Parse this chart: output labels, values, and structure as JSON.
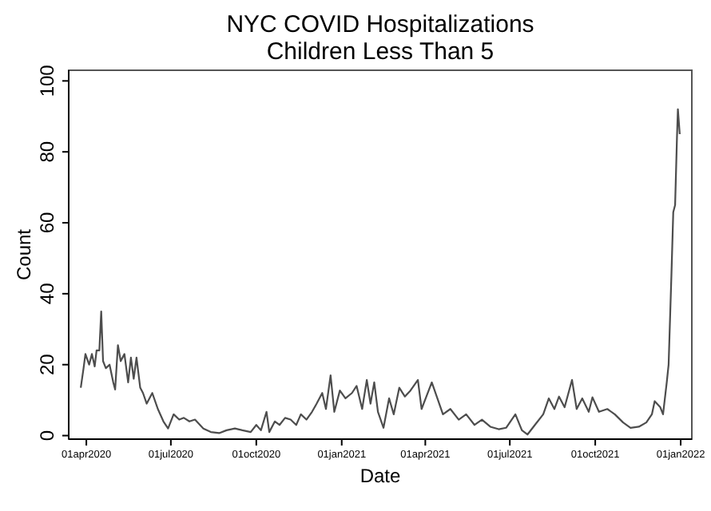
{
  "chart_data": {
    "type": "line",
    "title": "NYC COVID Hospitalizations",
    "subtitle": "Children Less Than 5",
    "xlabel": "Date",
    "ylabel": "Count",
    "xlim": [
      "2020-03-13",
      "2022-01-13"
    ],
    "ylim": [
      -1,
      103
    ],
    "xticks": [
      {
        "value": "2020-04-01",
        "label": "01apr2020"
      },
      {
        "value": "2020-07-01",
        "label": "01jul2020"
      },
      {
        "value": "2020-10-01",
        "label": "01oct2020"
      },
      {
        "value": "2021-01-01",
        "label": "01jan2021"
      },
      {
        "value": "2021-04-01",
        "label": "01apr2021"
      },
      {
        "value": "2021-07-01",
        "label": "01jul2021"
      },
      {
        "value": "2021-10-01",
        "label": "01oct2021"
      },
      {
        "value": "2022-01-01",
        "label": "01jan2022"
      }
    ],
    "yticks": [
      0,
      20,
      40,
      60,
      80,
      100
    ],
    "grid": false,
    "marker": "none",
    "line_style": "solid",
    "series": [
      {
        "color": "#4d4d4d",
        "x": [
          "2020-03-26",
          "2020-03-29",
          "2020-03-31",
          "2020-04-04",
          "2020-04-07",
          "2020-04-10",
          "2020-04-12",
          "2020-04-15",
          "2020-04-17",
          "2020-04-19",
          "2020-04-22",
          "2020-04-26",
          "2020-04-30",
          "2020-05-02",
          "2020-05-05",
          "2020-05-08",
          "2020-05-12",
          "2020-05-16",
          "2020-05-19",
          "2020-05-22",
          "2020-05-25",
          "2020-05-29",
          "2020-06-01",
          "2020-06-05",
          "2020-06-11",
          "2020-06-17",
          "2020-06-23",
          "2020-06-28",
          "2020-07-04",
          "2020-07-10",
          "2020-07-15",
          "2020-07-21",
          "2020-07-27",
          "2020-08-05",
          "2020-08-13",
          "2020-08-22",
          "2020-08-30",
          "2020-09-08",
          "2020-09-16",
          "2020-09-25",
          "2020-10-01",
          "2020-10-06",
          "2020-10-12",
          "2020-10-15",
          "2020-10-21",
          "2020-10-26",
          "2020-11-01",
          "2020-11-07",
          "2020-11-13",
          "2020-11-18",
          "2020-11-24",
          "2020-11-30",
          "2020-12-05",
          "2020-12-11",
          "2020-12-15",
          "2020-12-20",
          "2020-12-24",
          "2020-12-30",
          "2021-01-05",
          "2021-01-12",
          "2021-01-17",
          "2021-01-23",
          "2021-01-28",
          "2021-02-01",
          "2021-02-05",
          "2021-02-09",
          "2021-02-15",
          "2021-02-21",
          "2021-02-26",
          "2021-03-04",
          "2021-03-10",
          "2021-03-16",
          "2021-03-24",
          "2021-03-28",
          "2021-04-08",
          "2021-04-14",
          "2021-04-20",
          "2021-04-28",
          "2021-05-07",
          "2021-05-15",
          "2021-05-24",
          "2021-06-01",
          "2021-06-10",
          "2021-06-19",
          "2021-06-27",
          "2021-07-07",
          "2021-07-14",
          "2021-07-20",
          "2021-07-28",
          "2021-08-06",
          "2021-08-12",
          "2021-08-18",
          "2021-08-23",
          "2021-08-29",
          "2021-09-06",
          "2021-09-11",
          "2021-09-17",
          "2021-09-24",
          "2021-09-28",
          "2021-10-05",
          "2021-10-14",
          "2021-10-22",
          "2021-10-31",
          "2021-11-08",
          "2021-11-17",
          "2021-11-25",
          "2021-12-01",
          "2021-12-04",
          "2021-12-10",
          "2021-12-13",
          "2021-12-17",
          "2021-12-19",
          "2021-12-22",
          "2021-12-24",
          "2021-12-26",
          "2021-12-28",
          "2021-12-29",
          "2021-12-31"
        ],
        "values": [
          13.5,
          19,
          23,
          20,
          23,
          19.5,
          24,
          24,
          35,
          21,
          19,
          20,
          15,
          13,
          25.5,
          21,
          23,
          15,
          22,
          16,
          22,
          13.5,
          12,
          9,
          12,
          7.5,
          4,
          2,
          6,
          4.5,
          5,
          4,
          4.5,
          2,
          1,
          0.7,
          1.5,
          2,
          1.5,
          1,
          3,
          1.5,
          6.7,
          1,
          4,
          3,
          5,
          4.5,
          3,
          6,
          4.5,
          6.7,
          9,
          12,
          7.5,
          17,
          6.7,
          12.7,
          10.5,
          12,
          14,
          7.5,
          15.7,
          9,
          15,
          6.7,
          2.2,
          10.5,
          6,
          13.5,
          11,
          12.7,
          15.7,
          7.5,
          15,
          10.5,
          6,
          7.5,
          4.5,
          6,
          3,
          4.5,
          2.5,
          1.8,
          2.2,
          6,
          1.5,
          0.3,
          3,
          6,
          10.5,
          7.5,
          11,
          8,
          15.7,
          7.5,
          10.5,
          6.7,
          10.8,
          6.7,
          7.5,
          6,
          3.7,
          2.2,
          2.5,
          3.7,
          6,
          9.7,
          8,
          6,
          15,
          20,
          45,
          63,
          65,
          84,
          92,
          85
        ]
      }
    ]
  }
}
